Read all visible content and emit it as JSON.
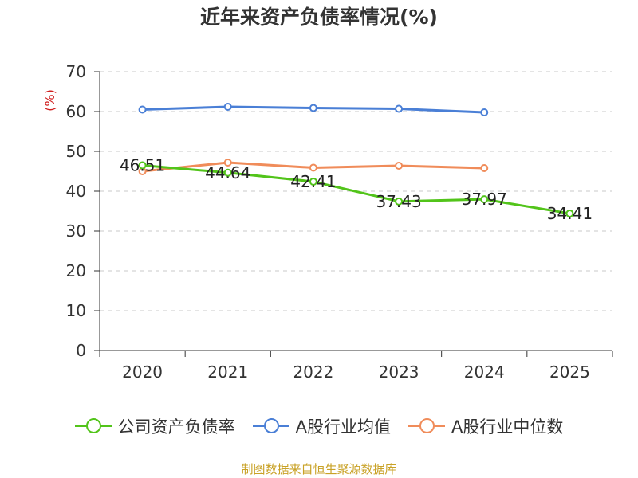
{
  "title": "近年来资产负债率情况(%)",
  "footer": "制图数据来自恒生聚源数据库",
  "chart_data": {
    "type": "line",
    "title": "近年来资产负债率情况(%)",
    "ylabel": "(%)",
    "xlabel": "",
    "categories": [
      "2020",
      "2021",
      "2022",
      "2023",
      "2024",
      "2025"
    ],
    "ylim": [
      0,
      70
    ],
    "yticks": [
      0,
      10,
      20,
      30,
      40,
      50,
      60,
      70
    ],
    "grid": true,
    "legend_position": "bottom",
    "series": [
      {
        "name": "公司资产负债率",
        "color": "#52c41a",
        "values": [
          46.51,
          44.64,
          42.41,
          37.43,
          37.97,
          34.41
        ],
        "labels": [
          "46.51",
          "44.64",
          "42.41",
          "37.43",
          "37.97",
          "34.41"
        ]
      },
      {
        "name": "A股行业均值",
        "color": "#4a7fd6",
        "values": [
          60.5,
          61.2,
          60.9,
          60.7,
          59.8,
          null
        ]
      },
      {
        "name": "A股行业中位数",
        "color": "#f08c5a",
        "values": [
          45.0,
          47.2,
          45.9,
          46.4,
          45.8,
          null
        ]
      }
    ]
  }
}
